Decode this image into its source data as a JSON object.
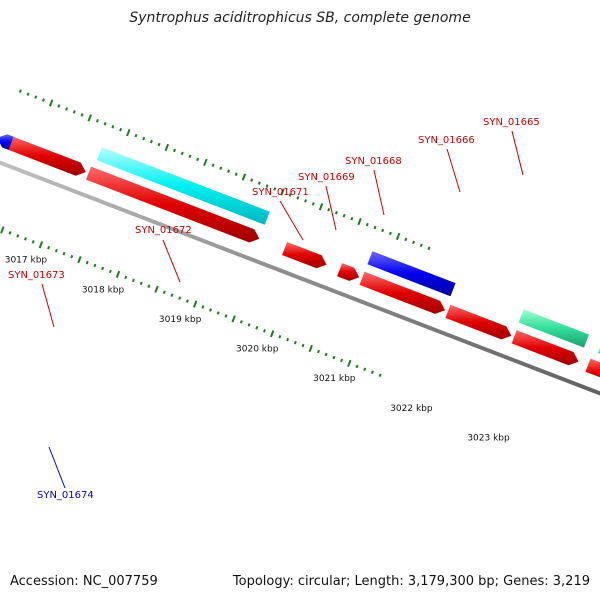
{
  "map": {
    "title": "Syntrophus aciditrophicus SB, complete genome",
    "accession": "Accession: NC_007759",
    "summary": "Topology: circular; Length: 3,179,300 bp; Genes: 3,219"
  },
  "colors": {
    "backbone": "#8c8c8c",
    "red": "#ff0000",
    "cyan": "#00ffff",
    "blue": "#0000ff",
    "green": "#33dd99",
    "olive": "#6b8e23",
    "tick": "#1a7f1a",
    "label_red": "#cc0000",
    "label_blue": "#0000cc"
  },
  "genes": [
    {
      "id": "SYN_01673"
    },
    {
      "id": "SYN_01672"
    },
    {
      "id": "SYN_01671"
    },
    {
      "id": "SYN_01669"
    },
    {
      "id": "SYN_01668"
    },
    {
      "id": "SYN_01666"
    },
    {
      "id": "SYN_01665"
    },
    {
      "id": "SYN_01674"
    }
  ],
  "scale_labels": [
    "3017 kbp",
    "3018 kbp",
    "3019 kbp",
    "3020 kbp",
    "3021 kbp",
    "3022 kbp",
    "3023 kbp"
  ]
}
